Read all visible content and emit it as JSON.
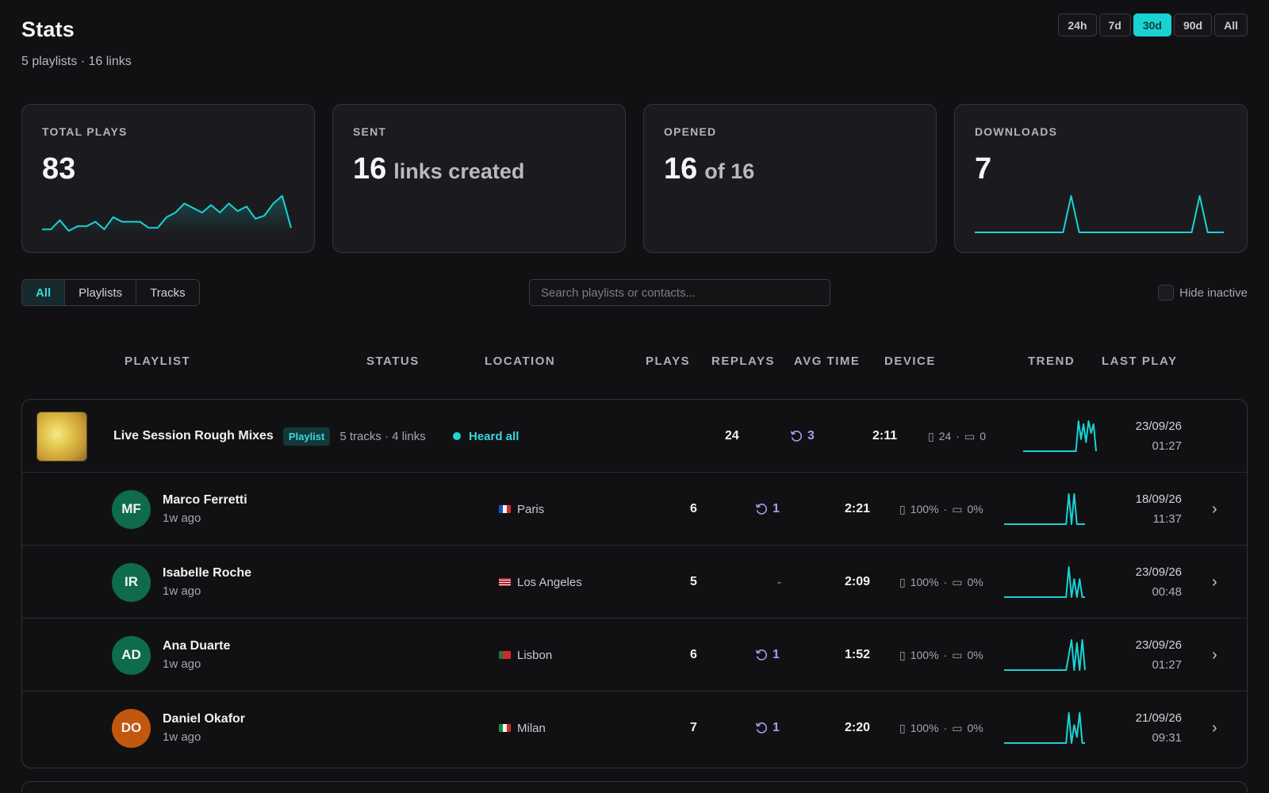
{
  "header": {
    "title": "Stats",
    "subtitle": "5 playlists · 16 links",
    "ranges": [
      "24h",
      "7d",
      "30d",
      "90d",
      "All"
    ],
    "active_range": "30d"
  },
  "colors": {
    "accent": "#19d3d3",
    "replay": "#a59cf0"
  },
  "cards": {
    "plays": {
      "label": "TOTAL PLAYS",
      "value": "83",
      "spark": [
        2,
        2,
        8,
        1,
        4,
        4,
        7,
        2,
        10,
        7,
        7,
        7,
        3,
        3,
        10,
        13,
        19,
        16,
        13,
        18,
        13,
        19,
        14,
        17,
        9,
        11,
        19,
        24,
        3
      ]
    },
    "sent": {
      "label": "SENT",
      "value": "16",
      "suffix": "links created"
    },
    "opened": {
      "label": "OPENED",
      "value": "16",
      "suffix": "of 16"
    },
    "downloads": {
      "label": "DOWNLOADS",
      "value": "7",
      "spark": [
        0,
        0,
        0,
        0,
        0,
        0,
        0,
        0,
        0,
        0,
        0,
        0,
        1,
        0,
        0,
        0,
        0,
        0,
        0,
        0,
        0,
        0,
        0,
        0,
        0,
        0,
        0,
        0,
        1,
        0,
        0,
        0
      ]
    }
  },
  "filters": {
    "tabs": [
      "All",
      "Playlists",
      "Tracks"
    ],
    "active_tab": "All",
    "search_placeholder": "Search playlists or contacts...",
    "hide_inactive_label": "Hide inactive"
  },
  "columns": {
    "playlist": "PLAYLIST",
    "status": "STATUS",
    "location": "LOCATION",
    "plays": "PLAYS",
    "replays": "REPLAYS",
    "avg_time": "AVG TIME",
    "device": "DEVICE",
    "trend": "TREND",
    "last_play": "LAST PLAY"
  },
  "playlist": {
    "name": "Live Session Rough Mixes",
    "badge": "Playlist",
    "meta": "5 tracks · 4 links",
    "status": "Heard all",
    "plays": "24",
    "replays": "3",
    "avg_time": "2:11",
    "mobile": "24",
    "desktop": "0",
    "date": "23/09/26",
    "time": "01:27",
    "trend": [
      0,
      0,
      0,
      0,
      0,
      0,
      0,
      0,
      0,
      0,
      0,
      0,
      0,
      0,
      0,
      0,
      0,
      0,
      0,
      0,
      0,
      0,
      1,
      0.4,
      0.9,
      0.3,
      1,
      0.6,
      0.9,
      0
    ]
  },
  "contacts": [
    {
      "initials": "MF",
      "name": "Marco Ferretti",
      "sub": "1w ago",
      "avatar_color": "#0e6b4c",
      "location": "Paris",
      "flag": "fr",
      "plays": "6",
      "replays": "1",
      "avg_time": "2:21",
      "mobile": "100%",
      "desktop": "0%",
      "date": "18/09/26",
      "time": "11:37",
      "trend": [
        0,
        0,
        0,
        0,
        0,
        0,
        0,
        0,
        0,
        0,
        0,
        0,
        0,
        0,
        0,
        0,
        0,
        0,
        0,
        0,
        0,
        0,
        0,
        0,
        1,
        0,
        1,
        0,
        0,
        0,
        0
      ]
    },
    {
      "initials": "IR",
      "name": "Isabelle Roche",
      "sub": "1w ago",
      "avatar_color": "#0e6b4c",
      "location": "Los Angeles",
      "flag": "us",
      "plays": "5",
      "replays": "-",
      "avg_time": "2:09",
      "mobile": "100%",
      "desktop": "0%",
      "date": "23/09/26",
      "time": "00:48",
      "trend": [
        0,
        0,
        0,
        0,
        0,
        0,
        0,
        0,
        0,
        0,
        0,
        0,
        0,
        0,
        0,
        0,
        0,
        0,
        0,
        0,
        0,
        0,
        0,
        0,
        1,
        0,
        0.6,
        0,
        0.6,
        0,
        0
      ]
    },
    {
      "initials": "AD",
      "name": "Ana Duarte",
      "sub": "1w ago",
      "avatar_color": "#0e6b4c",
      "location": "Lisbon",
      "flag": "pt",
      "plays": "6",
      "replays": "1",
      "avg_time": "1:52",
      "mobile": "100%",
      "desktop": "0%",
      "date": "23/09/26",
      "time": "01:27",
      "trend": [
        0,
        0,
        0,
        0,
        0,
        0,
        0,
        0,
        0,
        0,
        0,
        0,
        0,
        0,
        0,
        0,
        0,
        0,
        0,
        0,
        0,
        0,
        0,
        0,
        0.5,
        1,
        0,
        0.9,
        0,
        1,
        0
      ]
    },
    {
      "initials": "DO",
      "name": "Daniel Okafor",
      "sub": "1w ago",
      "avatar_color": "#c2580e",
      "location": "Milan",
      "flag": "it",
      "plays": "7",
      "replays": "1",
      "avg_time": "2:20",
      "mobile": "100%",
      "desktop": "0%",
      "date": "21/09/26",
      "time": "09:31",
      "trend": [
        0,
        0,
        0,
        0,
        0,
        0,
        0,
        0,
        0,
        0,
        0,
        0,
        0,
        0,
        0,
        0,
        0,
        0,
        0,
        0,
        0,
        0,
        0,
        0,
        1,
        0,
        0.6,
        0.2,
        1,
        0,
        0
      ]
    }
  ]
}
